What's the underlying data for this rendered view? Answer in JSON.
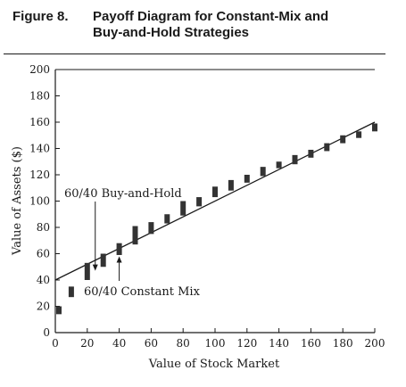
{
  "figure": {
    "number": "Figure 8.",
    "title_line1": "Payoff Diagram for Constant-Mix and",
    "title_line2": "Buy-and-Hold Strategies"
  },
  "chart_data": {
    "type": "line",
    "xlabel": "Value of Stock Market",
    "ylabel": "Value of Assets ($)",
    "xlim": [
      0,
      200
    ],
    "ylim": [
      0,
      200
    ],
    "x_ticks": [
      0,
      20,
      40,
      60,
      80,
      100,
      120,
      140,
      160,
      180,
      200
    ],
    "y_ticks": [
      0,
      20,
      40,
      60,
      80,
      100,
      120,
      140,
      160,
      180,
      200
    ],
    "grid": false,
    "series": [
      {
        "name": "60/40 Buy-and-Hold",
        "style": "line",
        "x": [
          0,
          200
        ],
        "y": [
          40,
          160
        ]
      },
      {
        "name": "60/40 Constant Mix",
        "style": "bars",
        "points": [
          {
            "x": 0,
            "y_low": 14,
            "y_high": 20
          },
          {
            "x": 10,
            "y_low": 27,
            "y_high": 35
          },
          {
            "x": 20,
            "y_low": 40,
            "y_high": 53
          },
          {
            "x": 30,
            "y_low": 50,
            "y_high": 60
          },
          {
            "x": 40,
            "y_low": 59,
            "y_high": 68
          },
          {
            "x": 50,
            "y_low": 67,
            "y_high": 81
          },
          {
            "x": 60,
            "y_low": 75,
            "y_high": 84
          },
          {
            "x": 70,
            "y_low": 83,
            "y_high": 90
          },
          {
            "x": 80,
            "y_low": 89,
            "y_high": 100
          },
          {
            "x": 90,
            "y_low": 96,
            "y_high": 103
          },
          {
            "x": 100,
            "y_low": 103,
            "y_high": 111
          },
          {
            "x": 110,
            "y_low": 108,
            "y_high": 116
          },
          {
            "x": 120,
            "y_low": 114,
            "y_high": 120
          },
          {
            "x": 130,
            "y_low": 119,
            "y_high": 126
          },
          {
            "x": 140,
            "y_low": 125,
            "y_high": 130
          },
          {
            "x": 150,
            "y_low": 128,
            "y_high": 135
          },
          {
            "x": 160,
            "y_low": 133,
            "y_high": 139
          },
          {
            "x": 170,
            "y_low": 138,
            "y_high": 144
          },
          {
            "x": 180,
            "y_low": 144,
            "y_high": 150
          },
          {
            "x": 190,
            "y_low": 148,
            "y_high": 153
          },
          {
            "x": 200,
            "y_low": 153,
            "y_high": 159
          }
        ]
      }
    ],
    "annotations": [
      {
        "text": "60/40 Buy-and-Hold",
        "arrow_to": {
          "x": 25,
          "y": 47
        }
      },
      {
        "text": "60/40 Constant Mix",
        "arrow_to": {
          "x": 40,
          "y": 58
        }
      }
    ],
    "colors": {
      "ink": "#1a1a1a",
      "bars": "#333333"
    }
  }
}
